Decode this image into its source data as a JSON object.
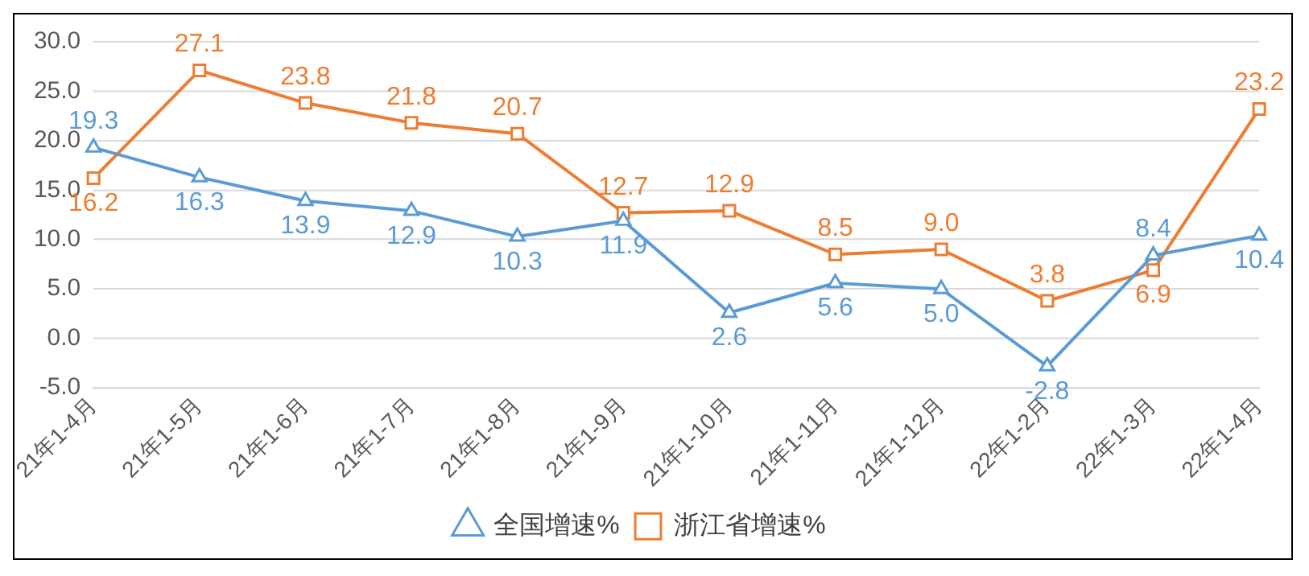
{
  "chart_data": {
    "type": "line",
    "categories": [
      "21年1-4月",
      "21年1-5月",
      "21年1-6月",
      "21年1-7月",
      "21年1-8月",
      "21年1-9月",
      "21年1-10月",
      "21年1-11月",
      "21年1-12月",
      "22年1-2月",
      "22年1-3月",
      "22年1-4月"
    ],
    "series": [
      {
        "name": "全国增速%",
        "color": "#5b9bd5",
        "marker": "triangle",
        "values": [
          19.3,
          16.3,
          13.9,
          12.9,
          10.3,
          11.9,
          2.6,
          5.6,
          5.0,
          -2.8,
          8.4,
          10.4
        ],
        "value_labels": [
          "19.3",
          "16.3",
          "13.9",
          "12.9",
          "10.3",
          "11.9",
          "2.6",
          "5.6",
          "5.0",
          "-2.8",
          "8.4",
          "10.4"
        ]
      },
      {
        "name": "浙江省增速%",
        "color": "#ed7d31",
        "marker": "square",
        "values": [
          16.2,
          27.1,
          23.8,
          21.8,
          20.7,
          12.7,
          12.9,
          8.5,
          9.0,
          3.8,
          6.9,
          23.2
        ],
        "value_labels": [
          "16.2",
          "27.1",
          "23.8",
          "21.8",
          "20.7",
          "12.7",
          "12.9",
          "8.5",
          "9.0",
          "3.8",
          "6.9",
          "23.2"
        ]
      }
    ],
    "ylim": [
      -5,
      30
    ],
    "yticks": [
      {
        "value": -5,
        "label": "-5.0"
      },
      {
        "value": 0,
        "label": "0.0"
      },
      {
        "value": 5,
        "label": "5.0"
      },
      {
        "value": 10,
        "label": "10.0"
      },
      {
        "value": 15,
        "label": "15.0"
      },
      {
        "value": 20,
        "label": "20.0"
      },
      {
        "value": 25,
        "label": "25.0"
      },
      {
        "value": 30,
        "label": "30.0"
      }
    ],
    "grid": "y",
    "legend": "bottom"
  }
}
